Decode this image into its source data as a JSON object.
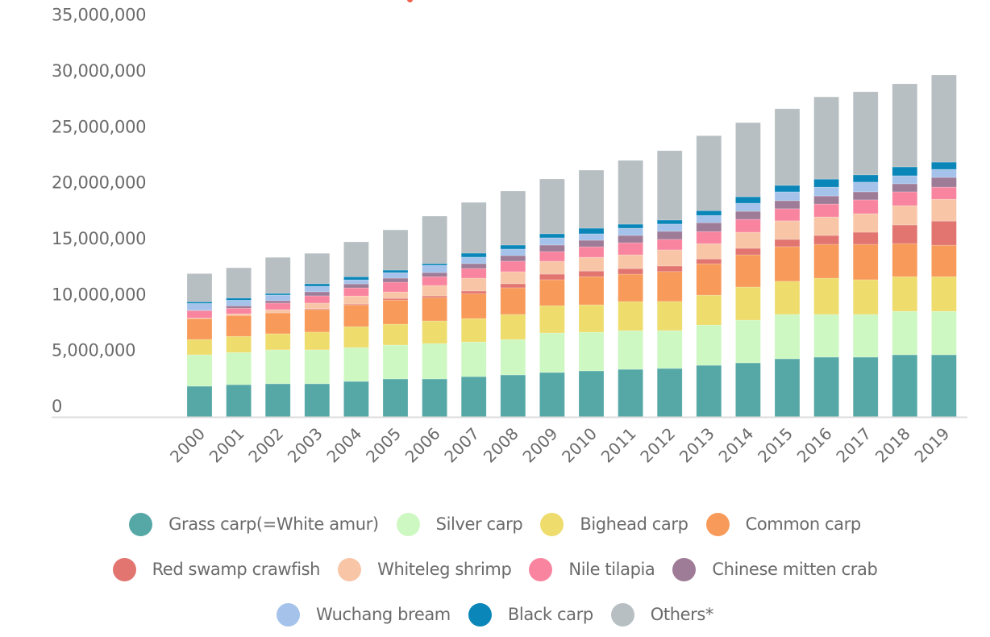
{
  "chart_data": {
    "type": "bar",
    "stacked": true,
    "title": "",
    "xlabel": "",
    "ylabel": "",
    "ylim": [
      0,
      35000000
    ],
    "yticks": [
      0,
      5000000,
      10000000,
      15000000,
      20000000,
      25000000,
      30000000,
      35000000
    ],
    "ytick_labels": [
      "0",
      "5,000,000",
      "10,000,000",
      "15,000,000",
      "20,000,000",
      "25,000,000",
      "30,000,000",
      "35,000,000"
    ],
    "grid": false,
    "legend_position": "bottom",
    "categories": [
      "2000",
      "2001",
      "2002",
      "2003",
      "2004",
      "2005",
      "2006",
      "2007",
      "2008",
      "2009",
      "2010",
      "2011",
      "2012",
      "2013",
      "2014",
      "2015",
      "2016",
      "2017",
      "2018",
      "2019"
    ],
    "series": [
      {
        "name": "Grass carp(=White amur)",
        "color": "#55a8a6",
        "values": [
          2740000,
          2880000,
          2960000,
          2960000,
          3170000,
          3390000,
          3390000,
          3600000,
          3750000,
          3970000,
          4110000,
          4250000,
          4330000,
          4610000,
          4830000,
          5190000,
          5340000,
          5340000,
          5550000,
          5550000
        ]
      },
      {
        "name": "Silver carp",
        "color": "#cdf8c2",
        "values": [
          2810000,
          2880000,
          3030000,
          3030000,
          3030000,
          3030000,
          3170000,
          3100000,
          3170000,
          3530000,
          3460000,
          3460000,
          3390000,
          3600000,
          3820000,
          3970000,
          3820000,
          3820000,
          3890000,
          3890000
        ]
      },
      {
        "name": "Bighead carp",
        "color": "#eedc6c",
        "values": [
          1370000,
          1440000,
          1440000,
          1590000,
          1870000,
          1870000,
          2020000,
          2090000,
          2240000,
          2450000,
          2450000,
          2600000,
          2600000,
          2670000,
          2960000,
          2960000,
          3240000,
          3100000,
          3100000,
          3100000
        ]
      },
      {
        "name": "Common carp",
        "color": "#f79a5a",
        "values": [
          1870000,
          1870000,
          1870000,
          2020000,
          1950000,
          2160000,
          2090000,
          2240000,
          2380000,
          2310000,
          2520000,
          2450000,
          2670000,
          2810000,
          2880000,
          3100000,
          3030000,
          3170000,
          2960000,
          2810000
        ]
      },
      {
        "name": "Red swamp crawfish",
        "color": "#e27570",
        "values": [
          0,
          0,
          0,
          70000,
          70000,
          140000,
          140000,
          220000,
          360000,
          500000,
          500000,
          500000,
          500000,
          430000,
          580000,
          650000,
          790000,
          1080000,
          1660000,
          2160000
        ]
      },
      {
        "name": "Whiteleg shrimp",
        "color": "#f8c5a7",
        "values": [
          50000,
          140000,
          290000,
          500000,
          720000,
          580000,
          940000,
          1150000,
          1080000,
          1150000,
          1230000,
          1230000,
          1440000,
          1370000,
          1440000,
          1660000,
          1660000,
          1660000,
          1730000,
          1950000
        ]
      },
      {
        "name": "Nile tilapia",
        "color": "#f9849f",
        "values": [
          650000,
          500000,
          580000,
          650000,
          720000,
          870000,
          790000,
          870000,
          940000,
          870000,
          940000,
          1080000,
          940000,
          1080000,
          1150000,
          1080000,
          1150000,
          1230000,
          1230000,
          1080000
        ]
      },
      {
        "name": "Chinese mitten crab",
        "color": "#9e7b97",
        "values": [
          50000,
          220000,
          220000,
          360000,
          360000,
          360000,
          360000,
          430000,
          500000,
          580000,
          580000,
          650000,
          720000,
          790000,
          720000,
          720000,
          720000,
          720000,
          720000,
          870000
        ]
      },
      {
        "name": "Wuchang bream",
        "color": "#a5c3ea",
        "values": [
          600000,
          500000,
          500000,
          500000,
          360000,
          500000,
          650000,
          580000,
          580000,
          650000,
          580000,
          650000,
          650000,
          650000,
          720000,
          790000,
          790000,
          870000,
          720000,
          720000
        ]
      },
      {
        "name": "Black carp",
        "color": "#0a86b8",
        "values": [
          150000,
          200000,
          150000,
          220000,
          280000,
          220000,
          150000,
          360000,
          360000,
          360000,
          500000,
          360000,
          360000,
          430000,
          580000,
          580000,
          720000,
          650000,
          790000,
          650000
        ]
      },
      {
        "name": "Others*",
        "color": "#b8bfc2",
        "values": [
          2520000,
          2700000,
          3220000,
          2720000,
          3120000,
          3600000,
          4250000,
          4540000,
          4830000,
          4900000,
          5190000,
          5700000,
          6200000,
          6700000,
          6630000,
          6850000,
          7350000,
          7430000,
          7430000,
          7790000
        ]
      }
    ]
  },
  "legend": {
    "rows": [
      [
        0,
        1,
        2,
        3
      ],
      [
        4,
        5,
        6,
        7
      ],
      [
        8,
        9,
        10
      ]
    ]
  },
  "colors": {
    "axis_line": "#dcdcdc",
    "tick_text": "#6b6b6b",
    "title_accent": "#f0604d"
  }
}
